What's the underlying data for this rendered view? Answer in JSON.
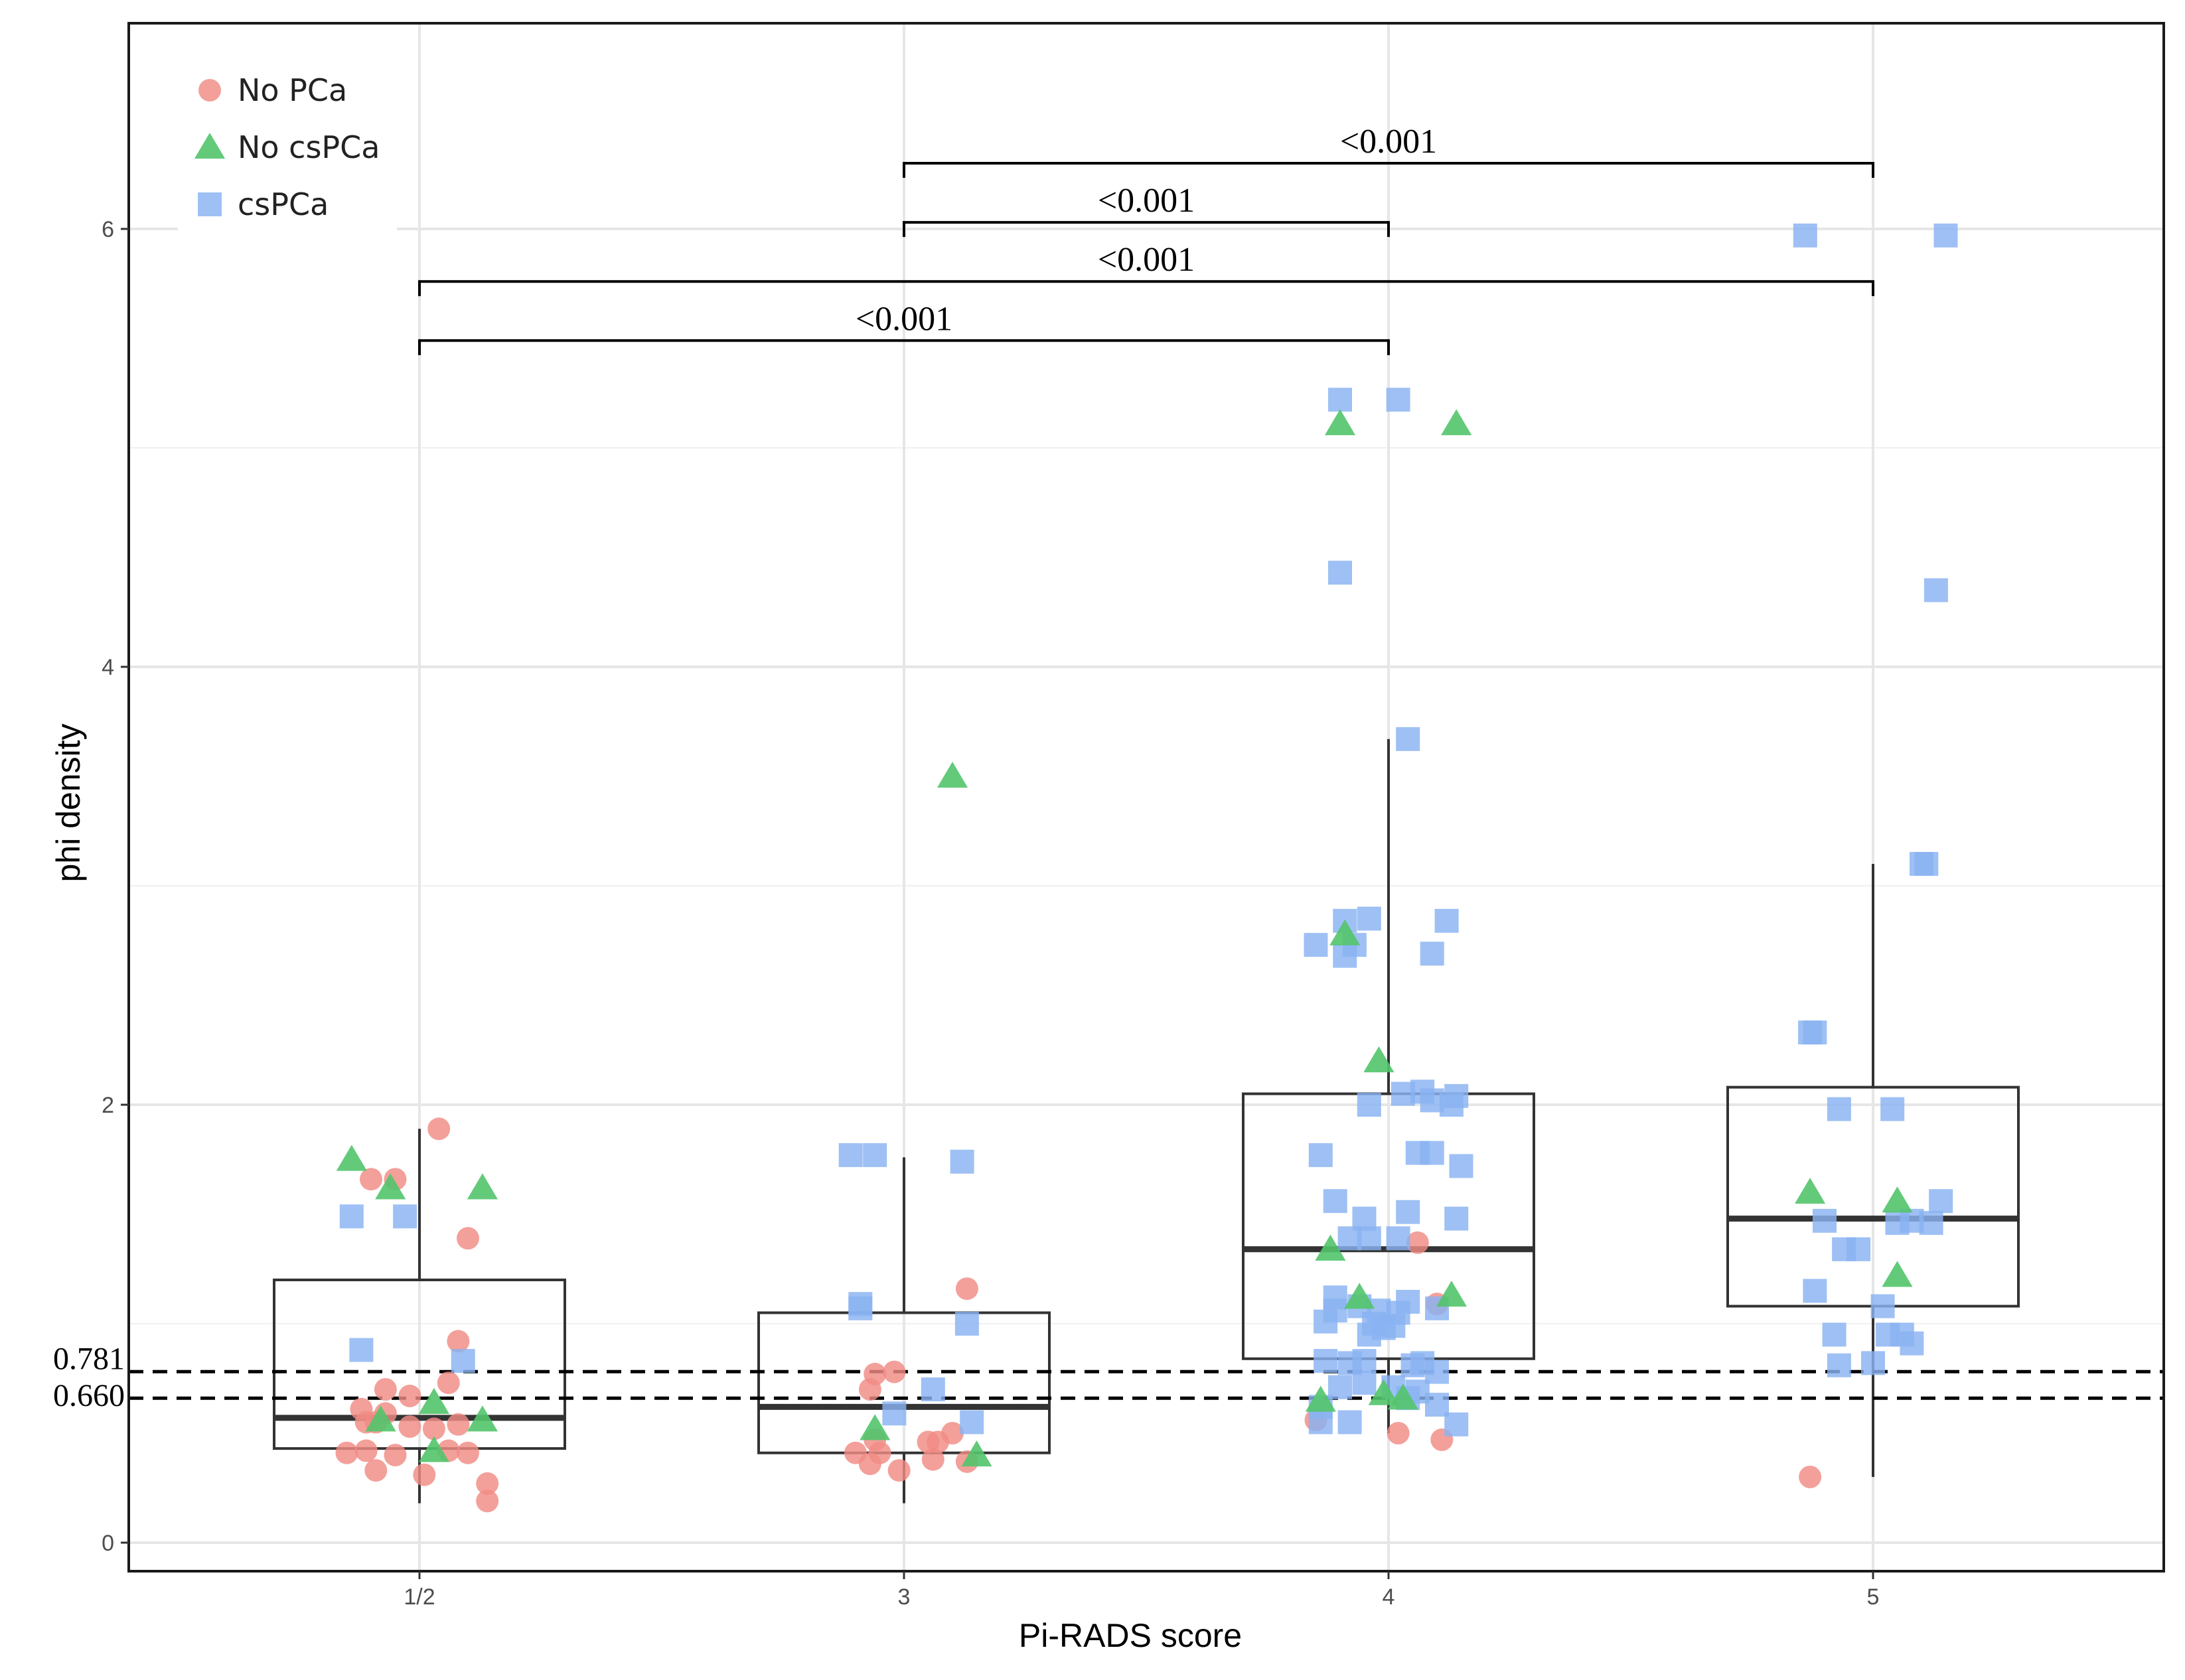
{
  "chart_data": {
    "type": "box+jitter",
    "xlabel": "Pi-RADS score",
    "ylabel": "phi density",
    "categories": [
      "1/2",
      "3",
      "4",
      "5"
    ],
    "y_ticks": [
      0,
      2,
      4,
      6
    ],
    "ylim": [
      -0.15,
      6.9
    ],
    "grid": true,
    "legend": {
      "position": "top-left",
      "entries": [
        {
          "label": "No PCa",
          "shape": "circle",
          "color": "#f08b84"
        },
        {
          "label": "No csPCa",
          "shape": "triangle",
          "color": "#52c46c"
        },
        {
          "label": "csPCa",
          "shape": "square",
          "color": "#89b2f2"
        }
      ]
    },
    "reference_lines": [
      {
        "value": 0.781,
        "label": "0.781"
      },
      {
        "value": 0.66,
        "label": "0.660"
      }
    ],
    "boxes": [
      {
        "category": "1/2",
        "q1": 0.43,
        "median": 0.57,
        "q3": 1.2,
        "whisker_low": 0.18,
        "whisker_high": 1.89
      },
      {
        "category": "3",
        "q1": 0.41,
        "median": 0.62,
        "q3": 1.05,
        "whisker_low": 0.18,
        "whisker_high": 1.76
      },
      {
        "category": "4",
        "q1": 0.84,
        "median": 1.34,
        "q3": 2.05,
        "whisker_low": 0.5,
        "whisker_high": 3.67
      },
      {
        "category": "5",
        "q1": 1.08,
        "median": 1.48,
        "q3": 2.08,
        "whisker_low": 0.3,
        "whisker_high": 3.1
      }
    ],
    "significance": [
      {
        "from": "3",
        "to": "5",
        "y": 6.3,
        "label": "<0.001"
      },
      {
        "from": "3",
        "to": "4",
        "y": 6.03,
        "label": "<0.001"
      },
      {
        "from": "1/2",
        "to": "5",
        "y": 5.76,
        "label": "<0.001"
      },
      {
        "from": "1/2",
        "to": "4",
        "y": 5.49,
        "label": "<0.001"
      }
    ],
    "series": [
      {
        "name": "No PCa",
        "points": [
          [
            0.04,
            1.89
          ],
          [
            -0.1,
            1.66
          ],
          [
            -0.05,
            1.66
          ],
          [
            0.1,
            1.39
          ],
          [
            0.08,
            0.92
          ],
          [
            0.06,
            0.73
          ],
          [
            -0.02,
            0.67
          ],
          [
            -0.12,
            0.61
          ],
          [
            -0.11,
            0.55
          ],
          [
            -0.09,
            0.55
          ],
          [
            -0.07,
            0.59
          ],
          [
            -0.02,
            0.53
          ],
          [
            0.08,
            0.54
          ],
          [
            -0.15,
            0.41
          ],
          [
            -0.11,
            0.42
          ],
          [
            -0.09,
            0.33
          ],
          [
            -0.05,
            0.4
          ],
          [
            0.01,
            0.31
          ],
          [
            0.06,
            0.42
          ],
          [
            0.1,
            0.41
          ],
          [
            0.14,
            0.19
          ],
          [
            0.14,
            0.27
          ],
          [
            0.03,
            0.52
          ],
          [
            1.13,
            1.16
          ],
          [
            0.98,
            0.78
          ],
          [
            -0.07,
            0.7
          ],
          [
            0.94,
            0.77
          ],
          [
            0.93,
            0.7
          ],
          [
            0.9,
            0.41
          ],
          [
            0.93,
            0.36
          ],
          [
            0.95,
            0.41
          ],
          [
            0.94,
            0.47
          ],
          [
            0.99,
            0.33
          ],
          [
            1.05,
            0.46
          ],
          [
            1.07,
            0.46
          ],
          [
            1.1,
            0.5
          ],
          [
            1.06,
            0.38
          ],
          [
            1.13,
            0.37
          ],
          [
            2.06,
            1.37
          ],
          [
            2.1,
            1.09
          ],
          [
            2.02,
            0.5
          ],
          [
            2.11,
            0.47
          ],
          [
            1.85,
            0.56
          ],
          [
            2.87,
            0.3
          ]
        ]
      },
      {
        "name": "No csPCa",
        "points": [
          [
            -0.14,
            1.75
          ],
          [
            -0.06,
            1.62
          ],
          [
            0.13,
            1.62
          ],
          [
            -0.08,
            0.56
          ],
          [
            0.03,
            0.64
          ],
          [
            0.03,
            0.42
          ],
          [
            0.13,
            0.56
          ],
          [
            0.94,
            0.52
          ],
          [
            1.1,
            3.5
          ],
          [
            1.15,
            0.4
          ],
          [
            1.9,
            5.11
          ],
          [
            2.14,
            5.11
          ],
          [
            1.98,
            2.2
          ],
          [
            1.91,
            2.78
          ],
          [
            1.88,
            1.34
          ],
          [
            1.94,
            1.12
          ],
          [
            2.13,
            1.13
          ],
          [
            1.86,
            0.65
          ],
          [
            1.99,
            0.68
          ],
          [
            2.03,
            0.66
          ],
          [
            2.87,
            1.6
          ],
          [
            3.05,
            1.56
          ],
          [
            3.05,
            1.22
          ]
        ]
      },
      {
        "name": "csPCa",
        "points": [
          [
            -0.14,
            1.49
          ],
          [
            -0.03,
            1.49
          ],
          [
            -0.12,
            0.88
          ],
          [
            0.09,
            0.83
          ],
          [
            0.89,
            1.77
          ],
          [
            0.94,
            1.77
          ],
          [
            1.12,
            1.74
          ],
          [
            0.91,
            1.09
          ],
          [
            0.91,
            1.07
          ],
          [
            1.13,
            1.0
          ],
          [
            1.06,
            0.7
          ],
          [
            1.14,
            0.55
          ],
          [
            0.98,
            0.59
          ],
          [
            1.9,
            5.22
          ],
          [
            2.02,
            5.22
          ],
          [
            1.9,
            4.43
          ],
          [
            2.04,
            3.67
          ],
          [
            1.91,
            2.84
          ],
          [
            1.96,
            2.85
          ],
          [
            2.12,
            2.84
          ],
          [
            1.85,
            2.73
          ],
          [
            1.93,
            2.73
          ],
          [
            1.91,
            2.68
          ],
          [
            2.09,
            2.69
          ],
          [
            1.96,
            2.0
          ],
          [
            2.03,
            2.05
          ],
          [
            2.07,
            2.06
          ],
          [
            2.14,
            2.04
          ],
          [
            2.09,
            2.02
          ],
          [
            2.13,
            2.0
          ],
          [
            1.86,
            1.77
          ],
          [
            2.06,
            1.78
          ],
          [
            2.09,
            1.78
          ],
          [
            2.15,
            1.72
          ],
          [
            1.89,
            1.56
          ],
          [
            1.95,
            1.48
          ],
          [
            2.04,
            1.51
          ],
          [
            2.14,
            1.48
          ],
          [
            1.92,
            1.39
          ],
          [
            1.96,
            1.39
          ],
          [
            2.02,
            1.39
          ],
          [
            1.89,
            1.12
          ],
          [
            1.94,
            1.08
          ],
          [
            2.04,
            1.1
          ],
          [
            1.89,
            1.06
          ],
          [
            2.02,
            1.05
          ],
          [
            1.98,
            1.06
          ],
          [
            1.87,
            1.01
          ],
          [
            1.97,
            1.0
          ],
          [
            1.99,
            0.98
          ],
          [
            2.01,
            0.99
          ],
          [
            1.96,
            0.95
          ],
          [
            2.1,
            1.07
          ],
          [
            1.87,
            0.83
          ],
          [
            1.92,
            0.82
          ],
          [
            1.95,
            0.83
          ],
          [
            2.05,
            0.81
          ],
          [
            2.07,
            0.82
          ],
          [
            1.95,
            0.73
          ],
          [
            2.01,
            0.71
          ],
          [
            1.9,
            0.71
          ],
          [
            2.06,
            0.69
          ],
          [
            1.86,
            0.55
          ],
          [
            1.92,
            0.55
          ],
          [
            2.04,
            0.66
          ],
          [
            2.1,
            0.63
          ],
          [
            1.86,
            0.62
          ],
          [
            2.14,
            0.54
          ],
          [
            2.1,
            0.78
          ],
          [
            2.86,
            5.97
          ],
          [
            3.15,
            5.97
          ],
          [
            3.13,
            4.35
          ],
          [
            3.1,
            3.1
          ],
          [
            3.11,
            3.1
          ],
          [
            2.87,
            2.33
          ],
          [
            2.88,
            2.33
          ],
          [
            2.93,
            1.98
          ],
          [
            3.04,
            1.98
          ],
          [
            2.9,
            1.47
          ],
          [
            3.05,
            1.46
          ],
          [
            3.08,
            1.47
          ],
          [
            3.14,
            1.56
          ],
          [
            3.12,
            1.46
          ],
          [
            2.94,
            1.34
          ],
          [
            2.97,
            1.34
          ],
          [
            2.88,
            1.15
          ],
          [
            3.02,
            1.08
          ],
          [
            3.03,
            0.95
          ],
          [
            3.06,
            0.95
          ],
          [
            3.08,
            0.91
          ],
          [
            2.92,
            0.95
          ],
          [
            2.93,
            0.81
          ],
          [
            3.0,
            0.82
          ]
        ]
      }
    ]
  }
}
